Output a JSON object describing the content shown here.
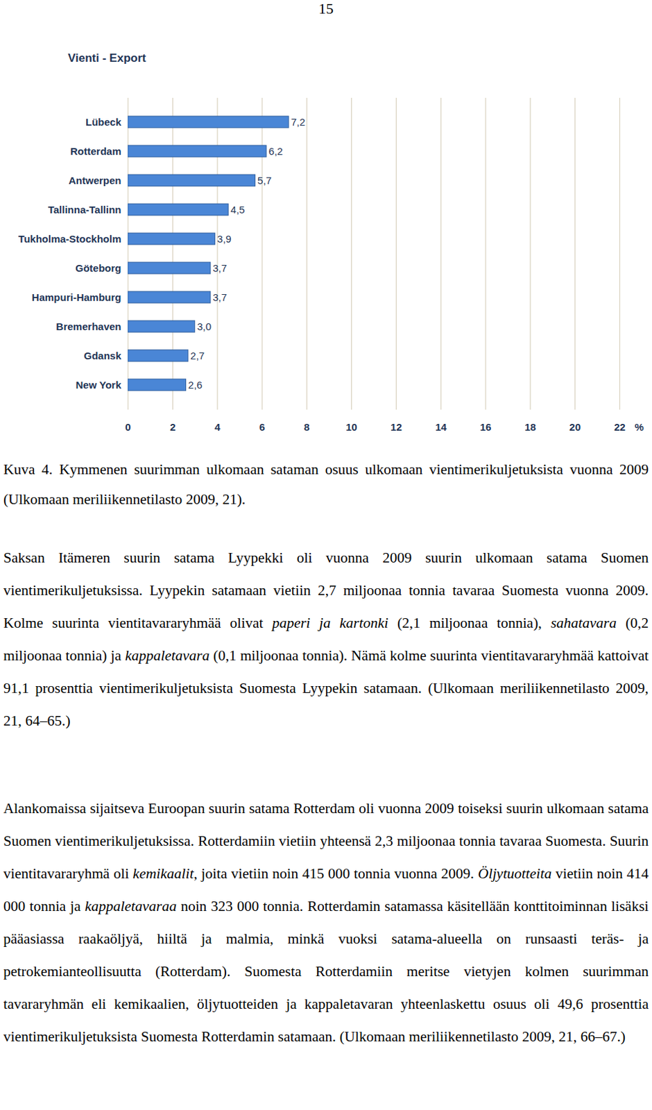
{
  "page_number": "15",
  "chart_data": {
    "type": "bar",
    "title": "Vienti - Export",
    "orientation": "horizontal",
    "categories": [
      "Lübeck",
      "Rotterdam",
      "Antwerpen",
      "Tallinna-Tallinn",
      "Tukholma-Stockholm",
      "Göteborg",
      "Hampuri-Hamburg",
      "Bremerhaven",
      "Gdansk",
      "New York"
    ],
    "values": [
      7.2,
      6.2,
      5.7,
      4.5,
      3.9,
      3.7,
      3.7,
      3.0,
      2.7,
      2.6
    ],
    "value_labels": [
      "7,2",
      "6,2",
      "5,7",
      "4,5",
      "3,9",
      "3,7",
      "3,7",
      "3,0",
      "2,7",
      "2,6"
    ],
    "data_labels": true,
    "color": "#4a86d6",
    "xlim": [
      0,
      22
    ],
    "xticks": [
      0,
      2,
      4,
      6,
      8,
      10,
      12,
      14,
      16,
      18,
      20,
      22
    ],
    "x_label": "%",
    "grid": true
  },
  "caption": "Kuva 4. Kymmenen suurimman ulkomaan sataman osuus ulkomaan vientimerikuljetuksista vuonna 2009 (Ulkomaan meriliikennetilasto 2009, 21).",
  "paragraphs": [
    [
      {
        "text": "Saksan Itämeren suurin satama Lyypekki oli vuonna 2009 suurin ulkomaan satama Suomen vientimerikuljetuksissa. Lyypekin satamaan vietiin 2,7 miljoonaa tonnia tavaraa Suomesta vuonna 2009. Kolme suurinta vientitavararyhmää olivat "
      },
      {
        "text": "paperi ja kartonki",
        "italic": true
      },
      {
        "text": " (2,1 miljoonaa tonnia), "
      },
      {
        "text": "sahatavara",
        "italic": true
      },
      {
        "text": " (0,2 miljoonaa tonnia) ja "
      },
      {
        "text": "kappaletavara",
        "italic": true
      },
      {
        "text": " (0,1 miljoonaa tonnia). Nämä kolme suurinta vientitavararyhmää kattoivat 91,1 prosenttia vientimerikuljetuksista Suomesta Lyypekin satamaan. (Ulkomaan meriliikennetilasto 2009, 21, 64–65.)"
      }
    ],
    [
      {
        "text": "Alankomaissa sijaitseva Euroopan suurin satama Rotterdam oli vuonna 2009 toiseksi suurin ulkomaan satama Suomen vientimerikuljetuksissa. Rotterdamiin vietiin yhteensä 2,3 miljoonaa tonnia tavaraa Suomesta. Suurin vientitavararyhmä oli "
      },
      {
        "text": "kemikaalit",
        "italic": true
      },
      {
        "text": ", joita vietiin noin 415 000 tonnia vuonna 2009. "
      },
      {
        "text": "Öljytuotteita",
        "italic": true
      },
      {
        "text": " vietiin noin 414 000 tonnia ja "
      },
      {
        "text": "kappaletavaraa",
        "italic": true
      },
      {
        "text": " noin 323 000 tonnia. Rotterdamin satamassa käsitellään konttitoiminnan lisäksi pääasiassa raakaöljyä, hiiltä ja malmia, minkä vuoksi satama-alueella on runsaasti teräs- ja petrokemianteollisuutta (Rotterdam). Suomesta Rotterdamiin meritse vietyjen kolmen suurimman tavararyhmän eli kemikaalien, öljytuotteiden ja kappaletavaran yhteenlaskettu osuus oli 49,6 prosenttia vientimerikuljetuksista Suomesta Rotterdamin satamaan. (Ulkomaan meriliikennetilasto 2009, 21, 66–67.)"
      }
    ]
  ]
}
